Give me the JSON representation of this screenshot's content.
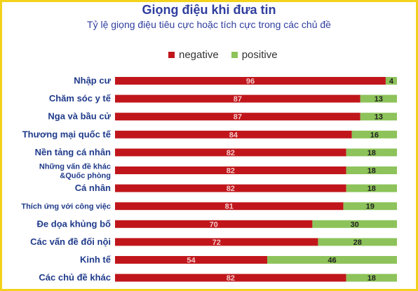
{
  "chart_data": {
    "type": "bar",
    "orientation": "horizontal",
    "stacked": true,
    "title": "Giọng điệu khi đưa tin",
    "subtitle": "Tỷ lệ giọng điệu tiêu cực hoặc tích cực trong các chủ đề",
    "legend_position": "top-right",
    "categories": [
      "Nhập cư",
      "Chăm sóc y tế",
      "Nga và bầu cử",
      "Thương mại quốc tế",
      "Nền tảng cá nhân",
      "Những vấn đề khác &Quốc phòng",
      "Cá nhân",
      "Thích ứng với công việc",
      "Đe dọa khủng bố",
      "Các vấn đề đối nội",
      "Kinh tế",
      "Các chủ đề khác"
    ],
    "series": [
      {
        "name": "negative",
        "color": "#c0161b",
        "values": [
          96,
          87,
          87,
          84,
          82,
          82,
          82,
          81,
          70,
          72,
          54,
          82
        ]
      },
      {
        "name": "positive",
        "color": "#8dc35a",
        "values": [
          4,
          13,
          13,
          16,
          18,
          18,
          18,
          19,
          30,
          28,
          46,
          18
        ]
      }
    ],
    "xlim": [
      0,
      100
    ]
  }
}
